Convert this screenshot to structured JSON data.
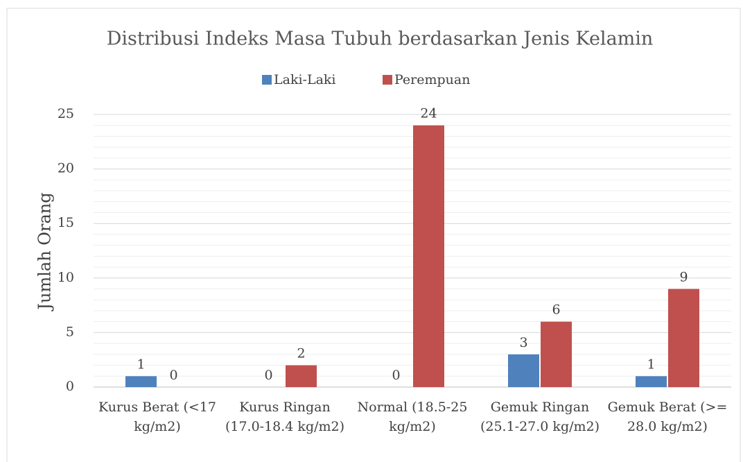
{
  "chart_data": {
    "type": "bar",
    "title": "Distribusi Indeks Masa Tubuh berdasarkan Jenis Kelamin",
    "y_label": "Jumlah Orang",
    "categories": [
      "Kurus Berat (<17 kg/m2)",
      "Kurus Ringan (17.0-18.4 kg/m2)",
      "Normal (18.5-25 kg/m2)",
      "Gemuk Ringan (25.1-27.0 kg/m2)",
      "Gemuk Berat (>= 28.0 kg/m2)"
    ],
    "series": [
      {
        "name": "Laki-Laki",
        "color": "#4f81bd",
        "values": [
          1,
          0,
          0,
          3,
          1
        ]
      },
      {
        "name": "Perempuan",
        "color": "#c0504d",
        "values": [
          0,
          2,
          24,
          6,
          9
        ]
      }
    ],
    "ylim": [
      0,
      25
    ],
    "yticks": [
      0,
      5,
      10,
      15,
      20,
      25
    ],
    "grid": true,
    "minor_grid_step": 1,
    "legend": "top"
  }
}
